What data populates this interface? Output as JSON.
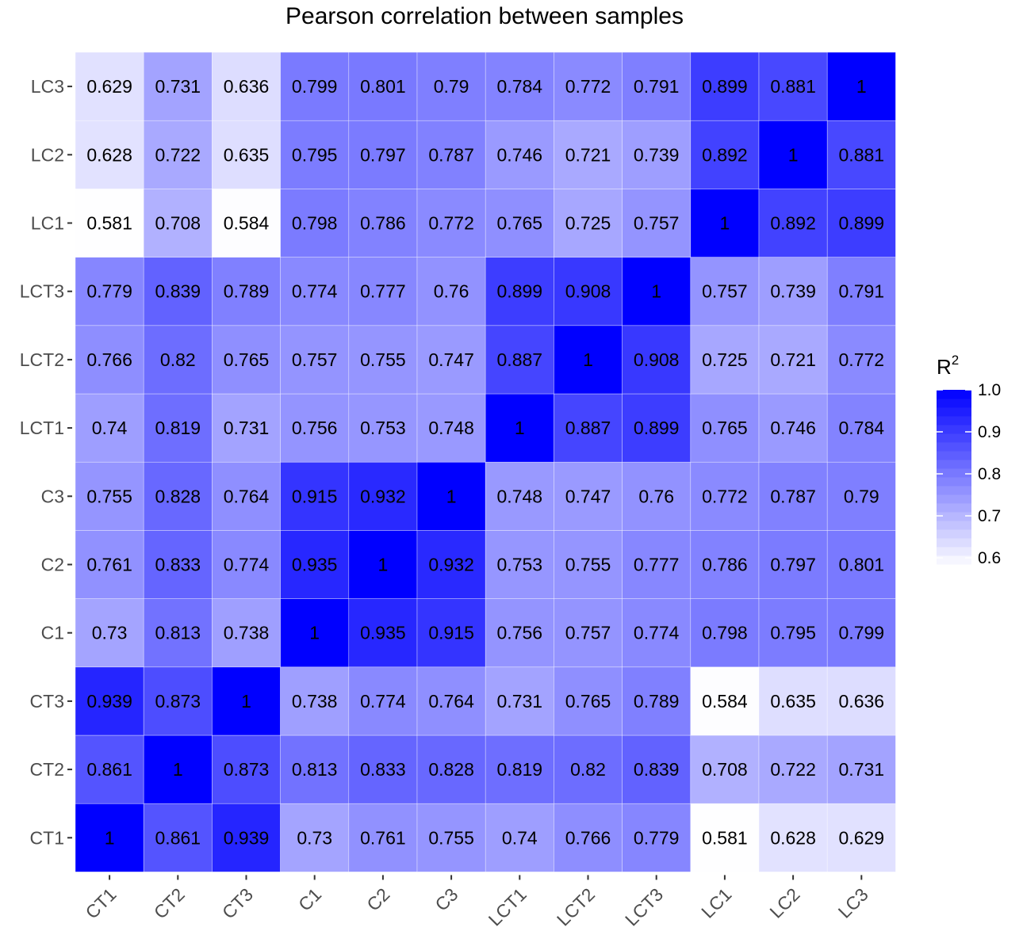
{
  "chart_data": {
    "type": "heatmap",
    "title": "Pearson correlation between samples",
    "x_categories": [
      "CT1",
      "CT2",
      "CT3",
      "C1",
      "C2",
      "C3",
      "LCT1",
      "LCT2",
      "LCT3",
      "LC1",
      "LC2",
      "LC3"
    ],
    "y_categories": [
      "CT1",
      "CT2",
      "CT3",
      "C1",
      "C2",
      "C3",
      "LCT1",
      "LCT2",
      "LCT3",
      "LC1",
      "LC2",
      "LC3"
    ],
    "values": [
      [
        "1",
        "0.861",
        "0.939",
        "0.73",
        "0.761",
        "0.755",
        "0.74",
        "0.766",
        "0.779",
        "0.581",
        "0.628",
        "0.629"
      ],
      [
        "0.861",
        "1",
        "0.873",
        "0.813",
        "0.833",
        "0.828",
        "0.819",
        "0.82",
        "0.839",
        "0.708",
        "0.722",
        "0.731"
      ],
      [
        "0.939",
        "0.873",
        "1",
        "0.738",
        "0.774",
        "0.764",
        "0.731",
        "0.765",
        "0.789",
        "0.584",
        "0.635",
        "0.636"
      ],
      [
        "0.73",
        "0.813",
        "0.738",
        "1",
        "0.935",
        "0.915",
        "0.756",
        "0.757",
        "0.774",
        "0.798",
        "0.795",
        "0.799"
      ],
      [
        "0.761",
        "0.833",
        "0.774",
        "0.935",
        "1",
        "0.932",
        "0.753",
        "0.755",
        "0.777",
        "0.786",
        "0.797",
        "0.801"
      ],
      [
        "0.755",
        "0.828",
        "0.764",
        "0.915",
        "0.932",
        "1",
        "0.748",
        "0.747",
        "0.76",
        "0.772",
        "0.787",
        "0.79"
      ],
      [
        "0.74",
        "0.819",
        "0.731",
        "0.756",
        "0.753",
        "0.748",
        "1",
        "0.887",
        "0.899",
        "0.765",
        "0.746",
        "0.784"
      ],
      [
        "0.766",
        "0.82",
        "0.765",
        "0.757",
        "0.755",
        "0.747",
        "0.887",
        "1",
        "0.908",
        "0.725",
        "0.721",
        "0.772"
      ],
      [
        "0.779",
        "0.839",
        "0.789",
        "0.774",
        "0.777",
        "0.76",
        "0.899",
        "0.908",
        "1",
        "0.757",
        "0.739",
        "0.791"
      ],
      [
        "0.581",
        "0.708",
        "0.584",
        "0.798",
        "0.786",
        "0.772",
        "0.765",
        "0.725",
        "0.757",
        "1",
        "0.892",
        "0.899"
      ],
      [
        "0.628",
        "0.722",
        "0.635",
        "0.795",
        "0.797",
        "0.787",
        "0.746",
        "0.721",
        "0.739",
        "0.892",
        "1",
        "0.881"
      ],
      [
        "0.629",
        "0.731",
        "0.636",
        "0.799",
        "0.801",
        "0.79",
        "0.784",
        "0.772",
        "0.791",
        "0.899",
        "0.881",
        "1"
      ]
    ],
    "color_scale": {
      "min": 0.58,
      "max": 1.0,
      "low_color": "#ffffff",
      "high_color": "#0000ff"
    },
    "legend": {
      "title": "R",
      "title_superscript": "2",
      "ticks": [
        "1.0",
        "0.9",
        "0.8",
        "0.7",
        "0.6"
      ],
      "tick_values": [
        1.0,
        0.9,
        0.8,
        0.7,
        0.6
      ],
      "position": "right"
    }
  }
}
